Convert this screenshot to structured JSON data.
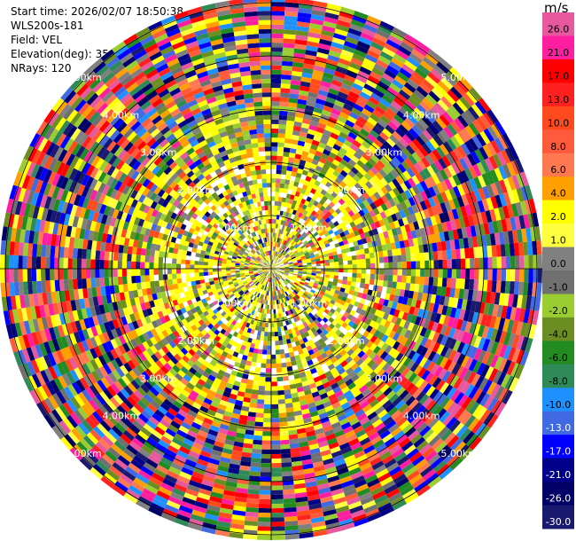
{
  "info": {
    "start_time": "Start time: 2026/02/07 18:50:38",
    "station": "WLS200s-181",
    "field": "Field: VEL",
    "elevation": "Elevation(deg): 35.00",
    "nrays": "NRays: 120"
  },
  "chart_data": {
    "type": "heatmap",
    "projection": "polar-ppi",
    "field": "VEL",
    "units": "m/s",
    "range_rings_km": [
      1.0,
      2.0,
      3.0,
      4.0,
      5.0
    ],
    "range_ring_labels": [
      "1.00km",
      "2.00km",
      "3.00km",
      "4.00km",
      "5.00km"
    ],
    "n_rays": 120,
    "colorbar": {
      "unit": "m/s",
      "ticks": [
        "26.0",
        "21.0",
        "17.0",
        "13.0",
        "10.0",
        "8.0",
        "6.0",
        "4.0",
        "2.0",
        "1.0",
        "0.0",
        "-1.0",
        "-2.0",
        "-4.0",
        "-6.0",
        "-8.0",
        "-10.0",
        "-13.0",
        "-17.0",
        "-21.0",
        "-26.0",
        "-30.0"
      ],
      "colors": [
        "#e8589e",
        "#ff1ea0",
        "#ff0000",
        "#ff2020",
        "#ff4a1e",
        "#ff5a3c",
        "#ff7850",
        "#ffa000",
        "#ffff00",
        "#ffff40",
        "#808080",
        "#707070",
        "#9acd32",
        "#6b8e23",
        "#228b22",
        "#2e8b57",
        "#1e90ff",
        "#4169e1",
        "#0000ff",
        "#00008b",
        "#000066",
        "#191970"
      ]
    }
  }
}
